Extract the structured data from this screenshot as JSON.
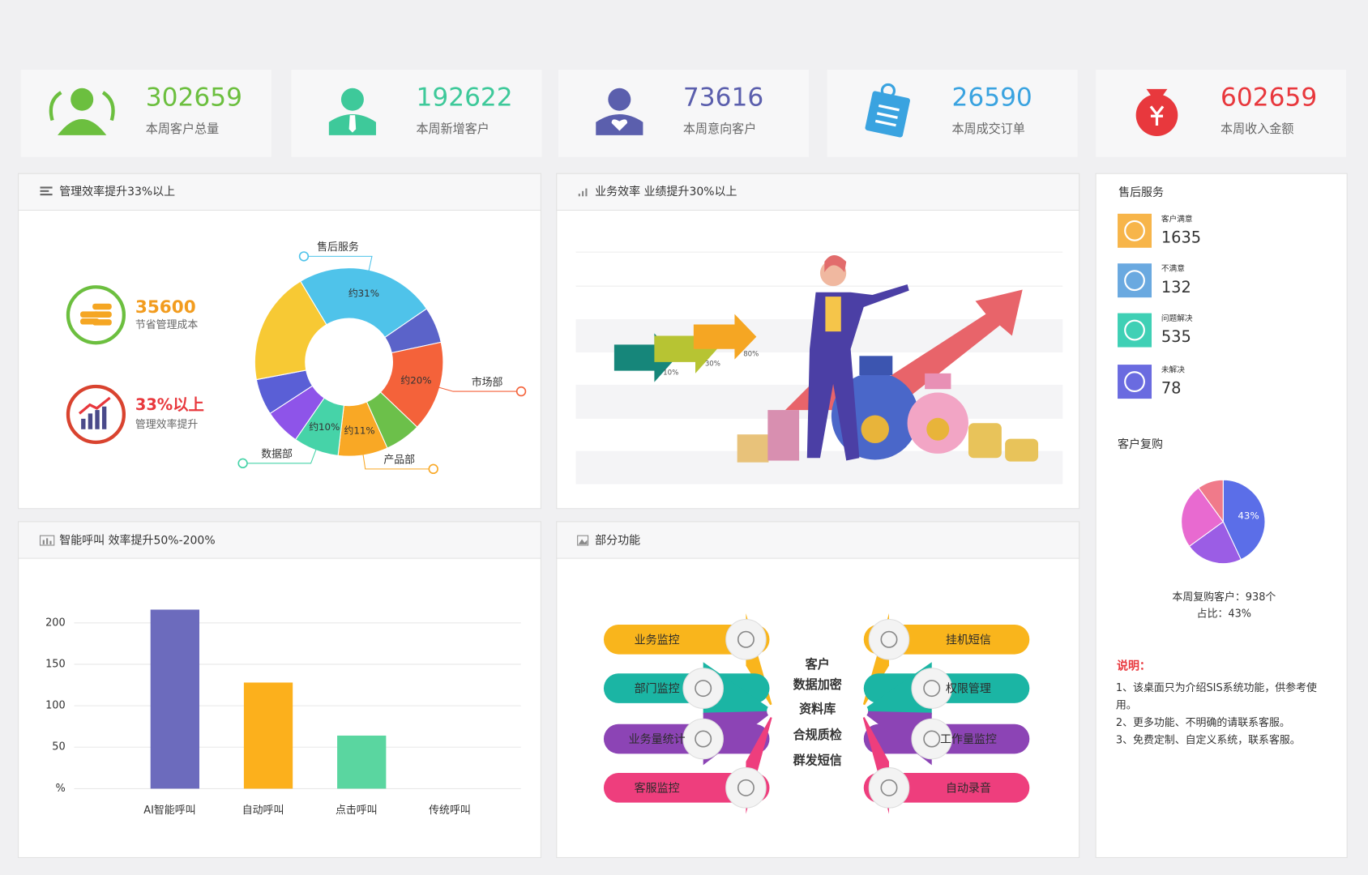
{
  "stats": [
    {
      "value": 302659,
      "label": "本周客户总量",
      "color": "#6cbf3f"
    },
    {
      "value": 192622,
      "label": "本周新增客户",
      "color": "#3ec99a"
    },
    {
      "value": 73616,
      "label": "本周意向客户",
      "color": "#5b5fad"
    },
    {
      "value": 26590,
      "label": "本周成交订单",
      "color": "#3aa3e0"
    },
    {
      "value": 602659,
      "label": "本周收入金额",
      "color": "#e8383d"
    }
  ],
  "efficiency": {
    "title": "管理效率提升33%以上",
    "kpis": [
      {
        "value": 35600,
        "label": "节省管理成本"
      },
      {
        "value": "33%以上",
        "label": "管理效率提升"
      }
    ]
  },
  "performance": {
    "title": "业务效率 业绩提升30%以上",
    "arrows": [
      "10%",
      "30%",
      "80%"
    ]
  },
  "calls": {
    "title": "智能呼叫 效率提升50%-200%"
  },
  "features": {
    "title": "部分功能",
    "left": [
      "业务监控",
      "部门监控",
      "业务量统计",
      "客服监控"
    ],
    "right": [
      "挂机短信",
      "权限管理",
      "工作量监控",
      "自动录音"
    ],
    "center": [
      "客户",
      "数据加密",
      "资料库",
      "合规质检",
      "群发短信"
    ]
  },
  "after_sales": {
    "title": "售后服务",
    "items": [
      {
        "label": "客户满意",
        "value": 1635
      },
      {
        "label": "不满意",
        "value": 132
      },
      {
        "label": "问题解决",
        "value": 535
      },
      {
        "label": "未解决",
        "value": 78
      }
    ],
    "repurchase_title": "客户复购",
    "repurchase_count": "本周复购客户：938个",
    "repurchase_share": "占比：43%",
    "notes_title": "说明：",
    "notes": [
      "1、该桌面只为介绍SIS系统功能，供参考使用。",
      "2、更多功能、不明确的请联系客服。",
      "3、免费定制、自定义系统，联系客服。"
    ]
  },
  "chart_data": [
    {
      "type": "donut",
      "categories": [
        "售后服务",
        null,
        "市场部",
        null,
        "产品部",
        "数据部",
        null,
        null,
        null
      ],
      "values": [
        31,
        8,
        20,
        8,
        11,
        10,
        8,
        8,
        25
      ],
      "value_labels": [
        "约31%",
        null,
        "约20%",
        null,
        "约11%",
        "约10%",
        null,
        null,
        null
      ],
      "colors": [
        "#4fc3ea",
        "#5b63c9",
        "#f4623a",
        "#6cc04a",
        "#f9a825",
        "#46d3a8",
        "#8e54e9",
        "#5a5fd6",
        "#f7c934"
      ]
    },
    {
      "type": "bar",
      "categories": [
        "AI智能呼叫",
        "自动呼叫",
        "点击呼叫",
        "传统呼叫"
      ],
      "values": [
        216,
        128,
        64,
        0
      ],
      "colors": [
        "#6c6bbd",
        "#fcb01c",
        "#5ad6a0",
        "#cccccc"
      ],
      "ylim": [
        0,
        220
      ],
      "yticks": [
        {
          "value": 0,
          "label": "%"
        },
        50,
        100,
        150,
        200
      ],
      "grid": true
    },
    {
      "type": "pie",
      "values": [
        43,
        22,
        25,
        10
      ],
      "value_labels": [
        "43%",
        null,
        null,
        null
      ],
      "colors": [
        "#5b6ee8",
        "#9b5de5",
        "#e86ad0",
        "#f07a8a"
      ]
    }
  ]
}
